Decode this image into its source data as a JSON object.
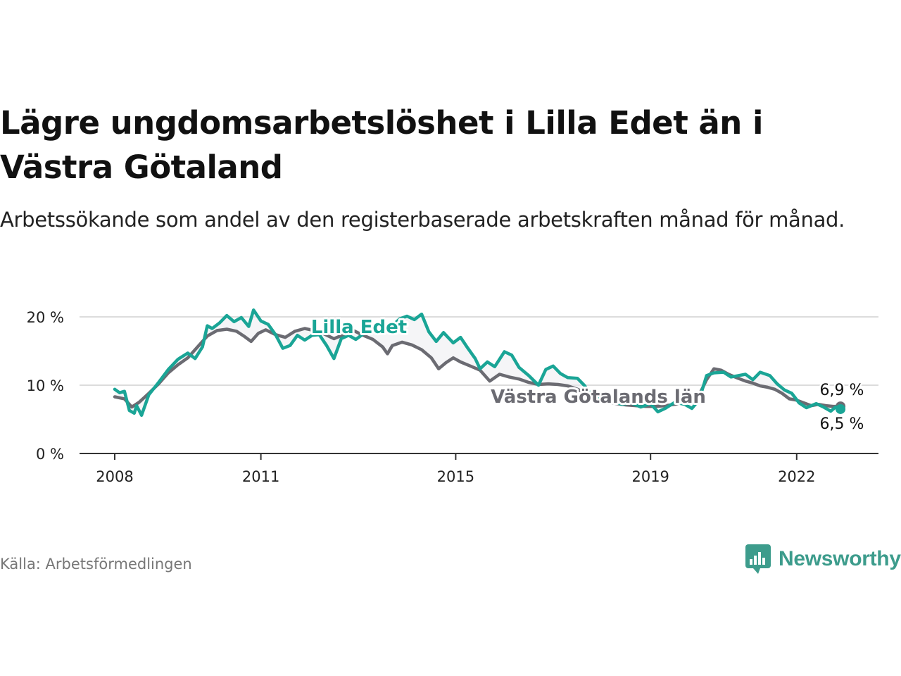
{
  "title": "Lägre ungdomsarbetslöshet i Lilla Edet än i Västra Götaland",
  "subtitle": "Arbetssökande som andel av den registerbaserade arbetskraften månad för månad.",
  "source": "Källa: Arbetsförmedlingen",
  "brand": {
    "name": "Newsworthy",
    "icon": "newsworthy-logo-icon",
    "color": "#3d9c8c"
  },
  "chart_data": {
    "type": "line",
    "title": "Lägre ungdomsarbetslöshet i Lilla Edet än i Västra Götaland",
    "xlabel": "",
    "ylabel": "",
    "xlim": [
      2008.0,
      2022.9
    ],
    "ylim": [
      0,
      20
    ],
    "grid": true,
    "x_ticks": [
      {
        "value": 2008,
        "label": "2008"
      },
      {
        "value": 2011,
        "label": "2011"
      },
      {
        "value": 2015,
        "label": "2015"
      },
      {
        "value": 2019,
        "label": "2019"
      },
      {
        "value": 2022,
        "label": "2022"
      }
    ],
    "y_ticks": [
      {
        "value": 0,
        "label": "0 %"
      },
      {
        "value": 10,
        "label": "10 %"
      },
      {
        "value": 20,
        "label": "20 %"
      }
    ],
    "series": [
      {
        "name": "Västra Götalands län",
        "color": "#6b6b72",
        "label": "Västra Götalands län",
        "end_label": "6,9 %",
        "points": [
          [
            2008.0,
            8.3
          ],
          [
            2008.2,
            8.0
          ],
          [
            2008.35,
            6.8
          ],
          [
            2008.5,
            7.5
          ],
          [
            2008.7,
            8.8
          ],
          [
            2008.9,
            10.2
          ],
          [
            2009.1,
            11.8
          ],
          [
            2009.3,
            13.0
          ],
          [
            2009.5,
            14.0
          ],
          [
            2009.7,
            15.6
          ],
          [
            2009.9,
            17.2
          ],
          [
            2010.1,
            18.0
          ],
          [
            2010.3,
            18.2
          ],
          [
            2010.5,
            17.9
          ],
          [
            2010.65,
            17.2
          ],
          [
            2010.8,
            16.4
          ],
          [
            2010.95,
            17.6
          ],
          [
            2011.1,
            18.1
          ],
          [
            2011.3,
            17.4
          ],
          [
            2011.5,
            17.0
          ],
          [
            2011.7,
            17.9
          ],
          [
            2011.9,
            18.3
          ],
          [
            2012.1,
            18.0
          ],
          [
            2012.3,
            17.5
          ],
          [
            2012.5,
            16.8
          ],
          [
            2012.7,
            17.4
          ],
          [
            2012.9,
            18.0
          ],
          [
            2013.1,
            17.3
          ],
          [
            2013.3,
            16.7
          ],
          [
            2013.5,
            15.6
          ],
          [
            2013.6,
            14.6
          ],
          [
            2013.7,
            15.8
          ],
          [
            2013.9,
            16.3
          ],
          [
            2014.1,
            15.9
          ],
          [
            2014.3,
            15.2
          ],
          [
            2014.5,
            14.0
          ],
          [
            2014.65,
            12.4
          ],
          [
            2014.8,
            13.3
          ],
          [
            2014.95,
            14.0
          ],
          [
            2015.1,
            13.4
          ],
          [
            2015.3,
            12.8
          ],
          [
            2015.5,
            12.2
          ],
          [
            2015.7,
            10.6
          ],
          [
            2015.9,
            11.6
          ],
          [
            2016.1,
            11.2
          ],
          [
            2016.3,
            10.9
          ],
          [
            2016.5,
            10.4
          ],
          [
            2016.7,
            10.1
          ],
          [
            2016.9,
            10.2
          ],
          [
            2017.1,
            10.1
          ],
          [
            2017.3,
            9.9
          ],
          [
            2017.5,
            9.4
          ],
          [
            2017.7,
            8.7
          ],
          [
            2017.9,
            8.0
          ],
          [
            2018.1,
            7.5
          ],
          [
            2018.3,
            7.3
          ],
          [
            2018.5,
            7.1
          ],
          [
            2018.7,
            7.0
          ],
          [
            2018.9,
            6.9
          ],
          [
            2019.1,
            6.9
          ],
          [
            2019.3,
            7.0
          ],
          [
            2019.5,
            7.2
          ],
          [
            2019.7,
            7.6
          ],
          [
            2019.9,
            8.0
          ],
          [
            2020.0,
            8.6
          ],
          [
            2020.15,
            10.8
          ],
          [
            2020.3,
            12.4
          ],
          [
            2020.45,
            12.2
          ],
          [
            2020.6,
            11.6
          ],
          [
            2020.8,
            11.0
          ],
          [
            2020.95,
            10.6
          ],
          [
            2021.1,
            10.3
          ],
          [
            2021.25,
            9.9
          ],
          [
            2021.4,
            9.7
          ],
          [
            2021.55,
            9.4
          ],
          [
            2021.7,
            8.8
          ],
          [
            2021.85,
            8.0
          ],
          [
            2022.0,
            7.8
          ],
          [
            2022.15,
            7.4
          ],
          [
            2022.3,
            7.0
          ],
          [
            2022.45,
            7.2
          ],
          [
            2022.6,
            7.0
          ],
          [
            2022.75,
            6.9
          ],
          [
            2022.9,
            6.9
          ]
        ]
      },
      {
        "name": "Lilla Edet",
        "color": "#1aa596",
        "label": "Lilla Edet",
        "end_label": "6,5 %",
        "points": [
          [
            2008.0,
            9.4
          ],
          [
            2008.1,
            8.9
          ],
          [
            2008.2,
            9.1
          ],
          [
            2008.3,
            6.3
          ],
          [
            2008.4,
            5.9
          ],
          [
            2008.45,
            7.0
          ],
          [
            2008.55,
            5.6
          ],
          [
            2008.7,
            8.6
          ],
          [
            2008.9,
            10.4
          ],
          [
            2009.1,
            12.3
          ],
          [
            2009.3,
            13.8
          ],
          [
            2009.5,
            14.7
          ],
          [
            2009.65,
            13.9
          ],
          [
            2009.8,
            15.6
          ],
          [
            2009.9,
            18.7
          ],
          [
            2010.0,
            18.3
          ],
          [
            2010.15,
            19.1
          ],
          [
            2010.3,
            20.2
          ],
          [
            2010.45,
            19.3
          ],
          [
            2010.6,
            19.9
          ],
          [
            2010.75,
            18.6
          ],
          [
            2010.85,
            21.0
          ],
          [
            2011.0,
            19.4
          ],
          [
            2011.15,
            18.9
          ],
          [
            2011.3,
            17.4
          ],
          [
            2011.45,
            15.4
          ],
          [
            2011.6,
            15.8
          ],
          [
            2011.75,
            17.3
          ],
          [
            2011.9,
            16.6
          ],
          [
            2012.05,
            17.3
          ],
          [
            2012.2,
            17.4
          ],
          [
            2012.35,
            15.8
          ],
          [
            2012.5,
            13.9
          ],
          [
            2012.65,
            16.8
          ],
          [
            2012.8,
            17.3
          ],
          [
            2012.95,
            16.7
          ],
          [
            2013.1,
            17.5
          ],
          [
            2013.3,
            18.2
          ],
          [
            2013.5,
            19.2
          ],
          [
            2013.65,
            18.4
          ],
          [
            2013.85,
            19.7
          ],
          [
            2014.0,
            20.1
          ],
          [
            2014.15,
            19.6
          ],
          [
            2014.3,
            20.4
          ],
          [
            2014.45,
            17.8
          ],
          [
            2014.6,
            16.4
          ],
          [
            2014.75,
            17.7
          ],
          [
            2014.95,
            16.2
          ],
          [
            2015.1,
            17.0
          ],
          [
            2015.25,
            15.4
          ],
          [
            2015.4,
            13.9
          ],
          [
            2015.5,
            12.4
          ],
          [
            2015.65,
            13.4
          ],
          [
            2015.8,
            12.7
          ],
          [
            2016.0,
            14.9
          ],
          [
            2016.15,
            14.4
          ],
          [
            2016.3,
            12.6
          ],
          [
            2016.5,
            11.4
          ],
          [
            2016.7,
            10.0
          ],
          [
            2016.85,
            12.3
          ],
          [
            2017.0,
            12.8
          ],
          [
            2017.15,
            11.7
          ],
          [
            2017.3,
            11.1
          ],
          [
            2017.5,
            11.0
          ],
          [
            2017.65,
            9.9
          ],
          [
            2017.8,
            8.4
          ],
          [
            2018.0,
            8.0
          ],
          [
            2018.2,
            7.8
          ],
          [
            2018.4,
            7.2
          ],
          [
            2018.6,
            7.4
          ],
          [
            2018.8,
            6.8
          ],
          [
            2019.0,
            7.3
          ],
          [
            2019.15,
            6.1
          ],
          [
            2019.3,
            6.6
          ],
          [
            2019.5,
            7.5
          ],
          [
            2019.7,
            7.2
          ],
          [
            2019.85,
            6.6
          ],
          [
            2020.0,
            7.9
          ],
          [
            2020.15,
            11.4
          ],
          [
            2020.3,
            11.8
          ],
          [
            2020.5,
            11.9
          ],
          [
            2020.65,
            11.2
          ],
          [
            2020.8,
            11.4
          ],
          [
            2020.95,
            11.6
          ],
          [
            2021.1,
            10.8
          ],
          [
            2021.25,
            11.9
          ],
          [
            2021.45,
            11.4
          ],
          [
            2021.6,
            10.2
          ],
          [
            2021.75,
            9.3
          ],
          [
            2021.9,
            8.8
          ],
          [
            2022.05,
            7.4
          ],
          [
            2022.2,
            6.7
          ],
          [
            2022.4,
            7.3
          ],
          [
            2022.55,
            6.8
          ],
          [
            2022.7,
            6.2
          ],
          [
            2022.8,
            6.8
          ],
          [
            2022.9,
            6.5
          ]
        ]
      }
    ]
  }
}
